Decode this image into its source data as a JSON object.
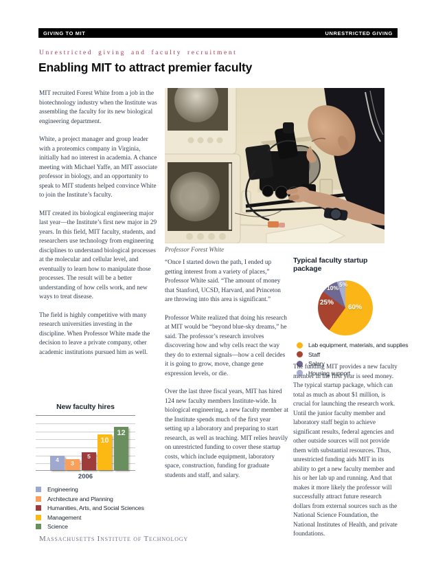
{
  "header": {
    "left": "GIVING TO MIT",
    "right": "UNRESTRICTED GIVING"
  },
  "eyebrow": "Unrestricted giving and faculty recruitment",
  "title": "Enabling MIT to attract premier faculty",
  "columns": {
    "left_paragraphs": [
      "MIT recruited Forest White from a job in the biotechnology industry when the Institute was assembling the faculty for its new biological engineering department.",
      "White, a project manager and group leader with a proteomics company in Virginia, initially had no interest in academia. A chance meeting with Michael Yaffe, an MIT associate professor in biology, and an opportunity to speak to MIT students helped convince White to join the Institute’s faculty.",
      "MIT created its biological engineering major last year—the Institute’s first new major in 29 years. In this field, MIT faculty, students, and researchers use technology from engineering disciplines to understand biological processes at the molecular and cellular level, and eventually to learn how to manipulate those processes. The result will be a better understanding of how cells work, and new ways to treat disease.",
      "The field is highly competitive with many research universities investing in the discipline. When Professor White made the decision to leave a private company, other academic institutions pursued him as well."
    ],
    "middle_paragraphs": [
      "“Once I started down the path, I ended up getting interest from a variety of places,” Professor White said. “The amount of money that Stanford, UCSD, Harvard, and Princeton are throwing into this area is significant.”",
      "Professor White realized that doing his research at MIT would be “beyond blue-sky dreams,” he said. The professor’s research involves discovering how and why cells react the way they do to external signals—how a cell decides it is going to grow, move, change gene expression levels, or die.",
      "Over the last three fiscal years, MIT has hired 124 new faculty members Institute-wide. In biological engineering, a new faculty member at the Institute spends much of the first year setting up a laboratory and preparing to start research, as well as teaching. MIT relies heavily on unrestricted funding to cover these startup costs, which include equipment, laboratory space, construction, funding for graduate students and staff, and salary."
    ],
    "right_paragraphs": [
      "The funding MIT provides a new faculty member in the first year is seed money. The typical startup package, which can total as much as about $1 million, is crucial for launching the research work. Until the junior faculty member and laboratory staff begin to achieve significant results, federal agencies and other outside sources will not provide them with substantial resources. Thus, unrestricted funding aids MIT in its ability to get a new faculty member and his or her lab up and running. And that makes it more likely the professor will successfully attract future research dollars from external sources such as the National Science Foundation, the National Institutes of Health, and private foundations."
    ]
  },
  "photo": {
    "caption": "Professor Forest White"
  },
  "chart_data": [
    {
      "type": "bar",
      "title": "New faculty hires",
      "categories": [
        "2006"
      ],
      "xlabel": "2006",
      "ylim": [
        0,
        13
      ],
      "grid": true,
      "legend_position": "bottom",
      "series": [
        {
          "name": "Engineering",
          "values": [
            4
          ],
          "color": "#9FA8CE"
        },
        {
          "name": "Architecture and Planning",
          "values": [
            3
          ],
          "color": "#F9A15B"
        },
        {
          "name": "Humanities, Arts, and Social Sciences",
          "values": [
            5
          ],
          "color": "#9E3B3B"
        },
        {
          "name": "Management",
          "values": [
            10
          ],
          "color": "#FCB813"
        },
        {
          "name": "Science",
          "values": [
            12
          ],
          "color": "#6A8F5F"
        }
      ]
    },
    {
      "type": "pie",
      "title": "Typical faculty startup package",
      "legend_position": "bottom",
      "slices": [
        {
          "label": "Lab equipment, materials, and supplies",
          "value": 60,
          "pct_label": "60%",
          "color": "#FBB516"
        },
        {
          "label": "Staff",
          "value": 25,
          "pct_label": "25%",
          "color": "#A8432F"
        },
        {
          "label": "Salary",
          "value": 10,
          "pct_label": "10%",
          "color": "#6F6893"
        },
        {
          "label": "Housing support",
          "value": 5,
          "pct_label": "5%",
          "color": "#A9AFD1"
        }
      ]
    }
  ],
  "footer": {
    "text": "Massachusetts Institute of Technology"
  }
}
